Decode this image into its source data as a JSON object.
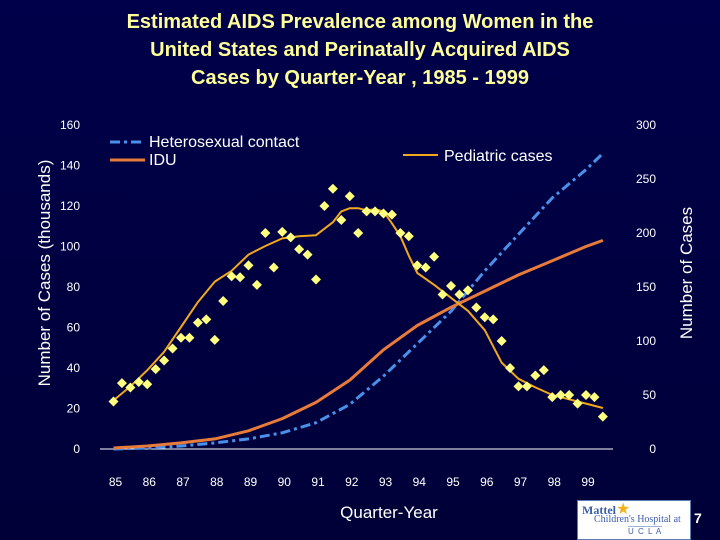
{
  "slide": {
    "title_lines": [
      "Estimated AIDS Prevalence among Women in the",
      "United States and  Perinatally Acquired AIDS",
      "Cases by Quarter-Year , 1985 - 1999"
    ],
    "page_number": "7",
    "logo": {
      "line1": "Mattel",
      "line2": "Children's Hospital at",
      "line3": "U C L A"
    }
  },
  "chart_data": {
    "type": "line",
    "xlabel": "Quarter-Year",
    "ylabel_left": "Number of Cases (thousands)",
    "ylabel_right": "Number of Cases",
    "x_ticks": [
      "85",
      "86",
      "87",
      "88",
      "89",
      "90",
      "91",
      "92",
      "93",
      "94",
      "95",
      "96",
      "97",
      "98",
      "99"
    ],
    "x_range": [
      1984.6,
      1999.8
    ],
    "ylim_left": [
      0,
      160
    ],
    "yticks_left": [
      0,
      20,
      40,
      60,
      80,
      100,
      120,
      140,
      160
    ],
    "ylim_right": [
      0,
      300
    ],
    "yticks_right": [
      0,
      50,
      100,
      150,
      200,
      250,
      300
    ],
    "colors": {
      "background": "#000040",
      "text": "#ffffff",
      "title": "#ffff99",
      "heterosexual": "#4a8fe8",
      "idu": "#e87a3a",
      "pediatric": "#f2a81c",
      "points": "#ffff80"
    },
    "legend": {
      "heterosexual_label": "Heterosexual contact",
      "idu_label": "IDU",
      "pediatric_label": "Pediatric cases"
    },
    "series": [
      {
        "name": "Heterosexual contact",
        "axis": "left",
        "style": "dash-dot",
        "color": "#4a8fe8",
        "x": [
          1985,
          1986,
          1987,
          1988,
          1989,
          1990,
          1991,
          1992,
          1993,
          1994,
          1995,
          1996,
          1997,
          1998,
          1999,
          1999.5
        ],
        "y": [
          0,
          0.5,
          1.5,
          3,
          5,
          8,
          13,
          22,
          36,
          52,
          68,
          88,
          106,
          124,
          138,
          146
        ]
      },
      {
        "name": "IDU",
        "axis": "left",
        "style": "solid",
        "color": "#e87a3a",
        "x": [
          1985,
          1986,
          1987,
          1988,
          1989,
          1990,
          1991,
          1992,
          1993,
          1994,
          1995,
          1996,
          1997,
          1998,
          1999,
          1999.5
        ],
        "y": [
          0.5,
          1.5,
          3,
          5,
          9,
          15,
          23,
          34,
          49,
          61,
          70,
          78,
          86,
          93,
          100,
          103
        ]
      },
      {
        "name": "Pediatric cases",
        "axis": "right",
        "style": "solid",
        "color": "#f2a81c",
        "x": [
          1985.0,
          1985.5,
          1986.0,
          1986.5,
          1987.0,
          1987.5,
          1988.0,
          1988.5,
          1989.0,
          1989.5,
          1990.0,
          1990.5,
          1991.0,
          1991.5,
          1991.75,
          1992.0,
          1992.25,
          1992.5,
          1992.75,
          1993.0,
          1993.25,
          1993.5,
          1993.75,
          1994.0,
          1994.5,
          1995.0,
          1995.5,
          1996.0,
          1996.5,
          1997.0,
          1997.5,
          1998.0,
          1998.5,
          1999.0,
          1999.5
        ],
        "y": [
          45,
          58,
          73,
          90,
          113,
          136,
          155,
          165,
          180,
          188,
          195,
          197,
          198,
          210,
          220,
          223,
          223,
          221,
          222,
          220,
          209,
          197,
          179,
          163,
          152,
          140,
          128,
          110,
          80,
          65,
          57,
          50,
          46,
          42,
          38
        ]
      },
      {
        "name": "Pediatric cases (quarterly)",
        "axis": "right",
        "style": "points",
        "color": "#ffff80",
        "x": [
          1985.0,
          1985.25,
          1985.5,
          1985.75,
          1986.0,
          1986.25,
          1986.5,
          1986.75,
          1987.0,
          1987.25,
          1987.5,
          1987.75,
          1988.0,
          1988.25,
          1988.5,
          1988.75,
          1989.0,
          1989.25,
          1989.5,
          1989.75,
          1990.0,
          1990.25,
          1990.5,
          1990.75,
          1991.0,
          1991.25,
          1991.5,
          1991.75,
          1992.0,
          1992.25,
          1992.5,
          1992.75,
          1993.0,
          1993.25,
          1993.5,
          1993.75,
          1994.0,
          1994.25,
          1994.5,
          1994.75,
          1995.0,
          1995.25,
          1995.5,
          1995.75,
          1996.0,
          1996.25,
          1996.5,
          1996.75,
          1997.0,
          1997.25,
          1997.5,
          1997.75,
          1998.0,
          1998.25,
          1998.5,
          1998.75,
          1999.0,
          1999.25,
          1999.5
        ],
        "y": [
          44,
          61,
          57,
          62,
          60,
          74,
          82,
          93,
          103,
          103,
          117,
          120,
          101,
          137,
          160,
          159,
          170,
          152,
          200,
          168,
          201,
          196,
          185,
          180,
          157,
          225,
          241,
          212,
          234,
          200,
          220,
          220,
          218,
          217,
          200,
          197,
          170,
          168,
          178,
          143,
          151,
          143,
          147,
          131,
          122,
          120,
          100,
          75,
          58,
          58,
          68,
          73,
          48,
          50,
          50,
          42,
          50,
          48,
          30
        ]
      }
    ]
  }
}
